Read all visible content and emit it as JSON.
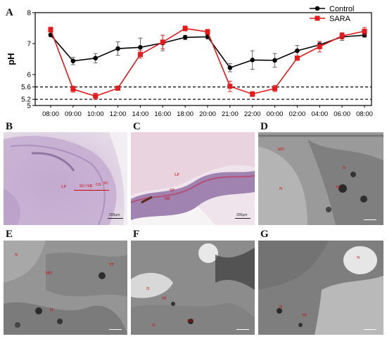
{
  "chart_data": {
    "type": "line",
    "panel_label": "A",
    "ylabel": "pH",
    "x": [
      "08:00",
      "09:00",
      "10:00",
      "12:00",
      "14:00",
      "16:00",
      "18:00",
      "20:00",
      "21:00",
      "22:00",
      "00:00",
      "02:00",
      "04:00",
      "06:00",
      "08:00"
    ],
    "ylim": [
      5,
      8
    ],
    "yticks": [
      8,
      7,
      6,
      5.6,
      5.2,
      5
    ],
    "reference_lines": [
      5.6,
      5.2
    ],
    "legend_position": "top-right",
    "series": [
      {
        "name": "Control",
        "color": "#000000",
        "marker": "circle",
        "values": [
          7.28,
          6.44,
          6.53,
          6.84,
          6.88,
          7.02,
          7.2,
          7.22,
          6.22,
          6.47,
          6.46,
          6.77,
          6.96,
          7.22,
          7.27
        ],
        "errors": [
          0.05,
          0.12,
          0.15,
          0.22,
          0.3,
          0.25,
          0.07,
          0.07,
          0.13,
          0.3,
          0.22,
          0.17,
          0.08,
          0.12,
          0.06
        ]
      },
      {
        "name": "SARA",
        "color": "#e41a1c",
        "marker": "square",
        "values": [
          7.45,
          5.53,
          5.3,
          5.56,
          6.65,
          7.05,
          7.49,
          7.38,
          5.62,
          5.37,
          5.55,
          6.53,
          6.9,
          7.25,
          7.4
        ],
        "errors": [
          0.08,
          0.1,
          0.1,
          0.07,
          0.12,
          0.22,
          0.08,
          0.08,
          0.17,
          0.08,
          0.1,
          0.07,
          0.17,
          0.1,
          0.12
        ]
      }
    ]
  },
  "panels": {
    "B": {
      "letter": "B",
      "labels": {
        "sc": "SC",
        "gs": "GS",
        "sg_sb": "SG+SB",
        "lp": "LP"
      },
      "scale": "200μm"
    },
    "C": {
      "letter": "C",
      "labels": {
        "lp": "LP",
        "sp": "SP",
        "sb": "SB"
      },
      "scale": "200μm"
    },
    "D": {
      "letter": "D",
      "labels": {
        "mt": "MT",
        "d": "D",
        "tf": "TF",
        "n": "N"
      }
    },
    "E": {
      "letter": "E",
      "labels": {
        "n": "N",
        "tf": "TF",
        "mt": "MT",
        "d": "D"
      }
    },
    "F": {
      "letter": "F",
      "labels": {
        "d": "D",
        "tf": "TF",
        "n": "N",
        "mt": "MT"
      }
    },
    "G": {
      "letter": "G",
      "labels": {
        "n": "N",
        "d": "D",
        "tf": "TF"
      }
    }
  }
}
